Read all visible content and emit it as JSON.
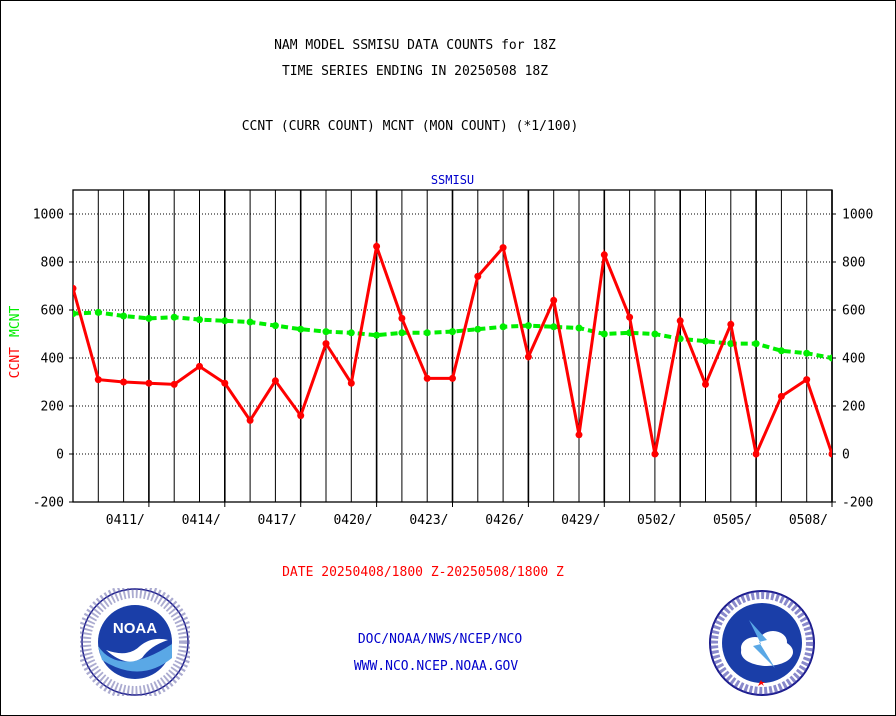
{
  "titles": {
    "line1": "NAM MODEL SSMISU DATA COUNTS for 18Z",
    "line2": "TIME SERIES ENDING IN 20250508 18Z",
    "line3": "CCNT (CURR COUNT) MCNT (MON COUNT) (*1/100)"
  },
  "footer": {
    "date_range": "DATE 20250408/1800 Z-20250508/1800 Z",
    "link1": "DOC/NOAA/NWS/NCEP/NCO",
    "link2": "WWW.NCO.NCEP.NOAA.GOV"
  },
  "logos": {
    "left": "noaa-logo",
    "right": "nws-logo",
    "left_text": "NOAA"
  },
  "colors": {
    "ccnt": "#ff0000",
    "mcnt": "#00ee00",
    "grid": "#000000",
    "plot_title": "#0000cc",
    "links": "#0000cc"
  },
  "chart_data": {
    "type": "line",
    "title": "SSMISU",
    "ylabel_series": [
      "CCNT",
      "MCNT"
    ],
    "ylim": [
      -200,
      1100
    ],
    "yticks": [
      -200,
      0,
      200,
      400,
      600,
      800,
      1000
    ],
    "xlim": [
      0,
      30
    ],
    "x_tick_labels": [
      "0411/",
      "0414/",
      "0417/",
      "0420/",
      "0423/",
      "0426/",
      "0429/",
      "0502/",
      "0505/",
      "0508/"
    ],
    "x_tick_positions": [
      3,
      6,
      9,
      12,
      15,
      18,
      21,
      24,
      27,
      30
    ],
    "grid": true,
    "series": [
      {
        "name": "CCNT",
        "values": [
          690,
          310,
          300,
          295,
          290,
          365,
          295,
          140,
          305,
          160,
          460,
          295,
          865,
          565,
          315,
          315,
          740,
          860,
          405,
          640,
          80,
          830,
          570,
          0,
          555,
          290,
          540,
          0,
          240,
          310,
          0
        ]
      },
      {
        "name": "MCNT",
        "values": [
          585,
          590,
          575,
          565,
          570,
          560,
          555,
          550,
          535,
          520,
          510,
          505,
          495,
          505,
          505,
          510,
          520,
          530,
          535,
          530,
          525,
          500,
          505,
          500,
          480,
          470,
          460,
          460,
          430,
          420,
          400
        ]
      }
    ]
  }
}
